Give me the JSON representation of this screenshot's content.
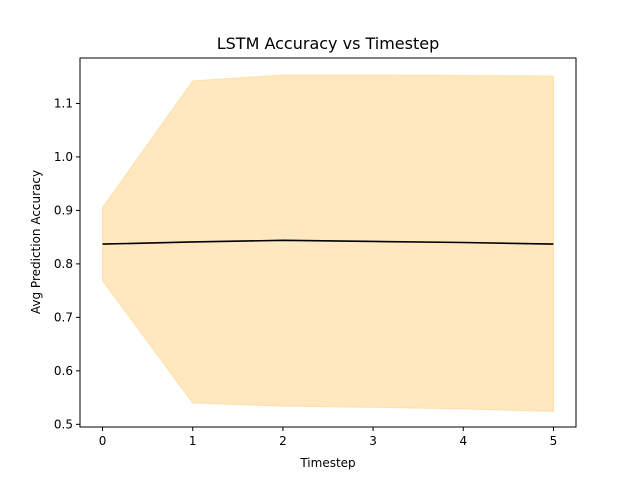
{
  "chart_data": {
    "type": "line",
    "title": "LSTM Accuracy vs Timestep",
    "xlabel": "Timestep",
    "ylabel": "Avg Prediction Accuracy",
    "xlim": [
      -0.25,
      5.25
    ],
    "ylim": [
      0.495,
      1.185
    ],
    "x_ticks": [
      0,
      1,
      2,
      3,
      4,
      5
    ],
    "y_ticks": [
      0.5,
      0.6,
      0.7,
      0.8,
      0.9,
      1.0,
      1.1
    ],
    "x_tick_labels": [
      "0",
      "1",
      "2",
      "3",
      "4",
      "5"
    ],
    "y_tick_labels": [
      "0.5",
      "0.6",
      "0.7",
      "0.8",
      "0.9",
      "1.0",
      "1.1"
    ],
    "grid": false,
    "legend": "none",
    "series": [
      {
        "x": [
          0,
          1,
          2,
          3,
          4,
          5
        ],
        "mean": [
          0.837,
          0.841,
          0.844,
          0.842,
          0.84,
          0.837
        ],
        "upper": [
          0.905,
          1.142,
          1.153,
          1.153,
          1.152,
          1.151
        ],
        "lower": [
          0.769,
          0.54,
          0.534,
          0.532,
          0.529,
          0.524
        ],
        "line_color": "#000000",
        "band_color": "#ffe8bf"
      }
    ]
  }
}
